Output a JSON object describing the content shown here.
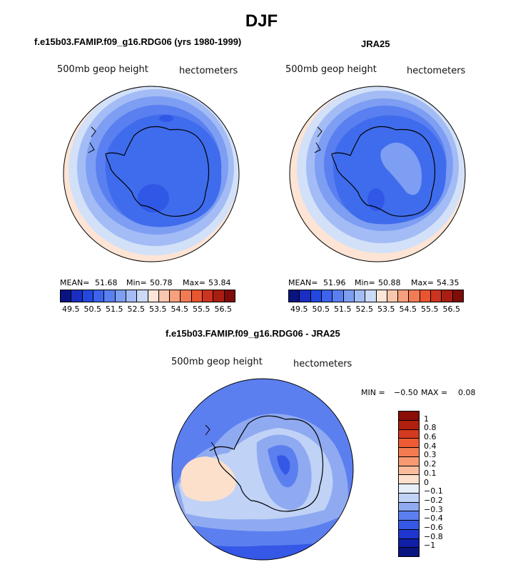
{
  "title": "DJF",
  "panels": [
    {
      "title": "f.e15b03.FAMIP.f09_g16.RDG06 (yrs 1980-1999)",
      "variable": "500mb geop height",
      "units": "hectometers",
      "mean_label": "MEAN=",
      "mean": "51.68",
      "min_label": "Min=",
      "min": "50.78",
      "max_label": "Max=",
      "max": "53.84"
    },
    {
      "title": "JRA25",
      "variable": "500mb geop height",
      "units": "hectometers",
      "mean_label": "MEAN=",
      "mean": "51.96",
      "min_label": "Min=",
      "min": "50.88",
      "max_label": "Max=",
      "max": "54.35"
    }
  ],
  "shared_colorbar": {
    "labels": [
      "49.5",
      "50.5",
      "51.5",
      "52.5",
      "53.5",
      "54.5",
      "55.5",
      "56.5"
    ],
    "colors": [
      "#0a1480",
      "#1a2fc2",
      "#2348e0",
      "#3d63ec",
      "#5a7ff0",
      "#7d9ef2",
      "#a3bcf5",
      "#cbdaf7",
      "#fde6d8",
      "#f9c7ae",
      "#f6a07d",
      "#f27a55",
      "#e85530",
      "#cc3420",
      "#a81e12",
      "#7e0c08"
    ]
  },
  "difference": {
    "title": "f.e15b03.FAMIP.f09_g16.RDG06 - JRA25",
    "variable": "500mb geop height",
    "units": "hectometers",
    "min_label": "MIN =",
    "min": "−0.50",
    "max_label": "MAX =",
    "max": "0.08",
    "colorbar_labels": [
      "1",
      "0.8",
      "0.6",
      "0.4",
      "0.3",
      "0.2",
      "0.1",
      "0",
      "−0.1",
      "−0.2",
      "−0.3",
      "−0.4",
      "−0.6",
      "−0.8",
      "−1"
    ],
    "colorbar_colors": [
      "#8a0e07",
      "#b0200f",
      "#d43a1f",
      "#ee5a33",
      "#f47a4f",
      "#f79a72",
      "#f9bc9c",
      "#fde0cc",
      "#e6eefa",
      "#c0d2f6",
      "#8faaf1",
      "#5c7ff0",
      "#3558e6",
      "#1e36cf",
      "#0f1fa8",
      "#0a1480"
    ]
  },
  "colors": {
    "field_low": "#3f6cec",
    "field_mid": "#6a8ff1",
    "field_high": "#a3bcf5",
    "field_highest": "#d3e1f8",
    "field_warm": "#fde4d4",
    "coast": "#000000"
  }
}
